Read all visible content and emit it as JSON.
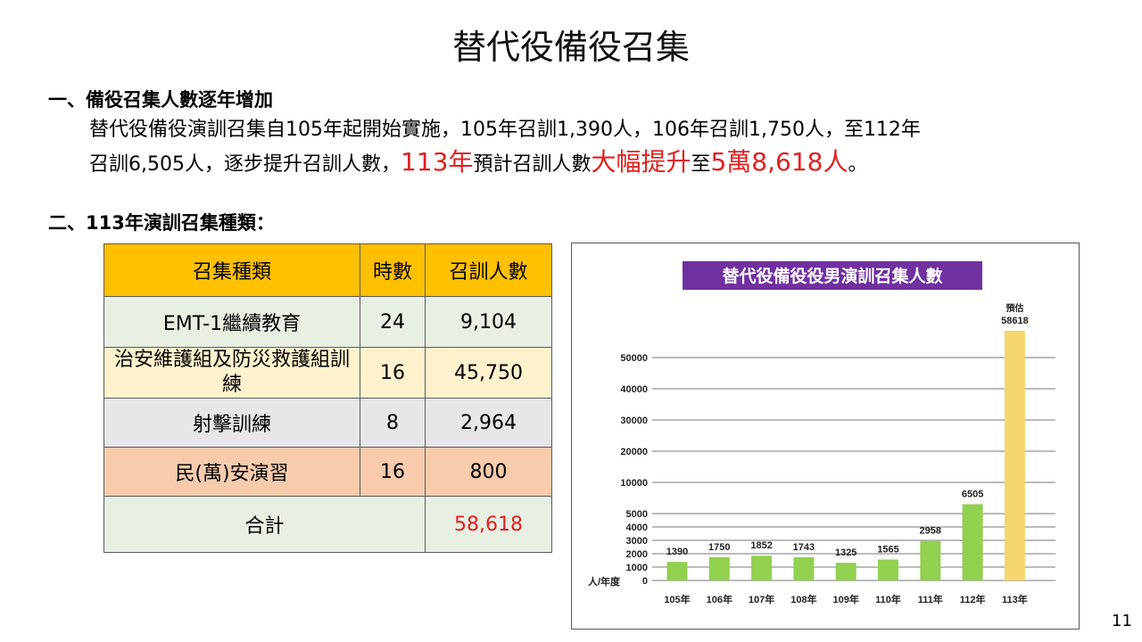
{
  "title": "替代役備役召集",
  "section1": {
    "heading": "一、備役召集人數逐年增加",
    "line1": "替代役備役演訓召集自105年起開始實施，105年召訓1,390人，106年召訓1,750人，至112年",
    "line2a": "召訓6,505人，逐步提升召訓人數，",
    "line2b": "113年",
    "line2c": "預計召訓人數",
    "line2d": "大幅提升",
    "line2e": "至",
    "line2f": "5萬8,618人",
    "line2g": "。"
  },
  "section2": {
    "heading": "二、113年演訓召集種類："
  },
  "table": {
    "headers": [
      "召集種類",
      "時數",
      "召訓人數"
    ],
    "rows": [
      {
        "name": "EMT-1繼續教育",
        "hours": "24",
        "count": "9,104"
      },
      {
        "name": "治安維護組及防災救護組訓練",
        "hours": "16",
        "count": "45,750"
      },
      {
        "name": "射擊訓練",
        "hours": "8",
        "count": "2,964"
      },
      {
        "name": "民(萬)安演習",
        "hours": "16",
        "count": "800"
      }
    ],
    "total_label": "合計",
    "total_value": "58,618"
  },
  "chart_data": {
    "type": "bar",
    "title": "替代役備役役男演訓召集人數",
    "xlabel": "",
    "ylabel": "人/年度",
    "categories": [
      "105年",
      "106年",
      "107年",
      "108年",
      "109年",
      "110年",
      "111年",
      "112年",
      "113年"
    ],
    "values": [
      1390,
      1750,
      1852,
      1743,
      1325,
      1565,
      2958,
      6505,
      58618
    ],
    "value_labels": [
      "1390",
      "1750",
      "1852",
      "1743",
      "1325",
      "1565",
      "2958",
      "6505",
      "58618"
    ],
    "annotation_last": "預估",
    "y_ticks": [
      0,
      1000,
      2000,
      3000,
      4000,
      5000,
      10000,
      20000,
      30000,
      40000,
      50000
    ],
    "y_tick_labels": [
      "0",
      "1000",
      "2000",
      "3000",
      "4000",
      "5000",
      "10000",
      "20000",
      "30000",
      "40000",
      "50000"
    ],
    "ylim": [
      0,
      60000
    ],
    "grid": true,
    "colors": {
      "bar": "#92d050",
      "bar_estimate": "#f5d76e",
      "title_bg": "#7030a0",
      "grid": "#a6a6a6"
    }
  },
  "page_number": "11"
}
